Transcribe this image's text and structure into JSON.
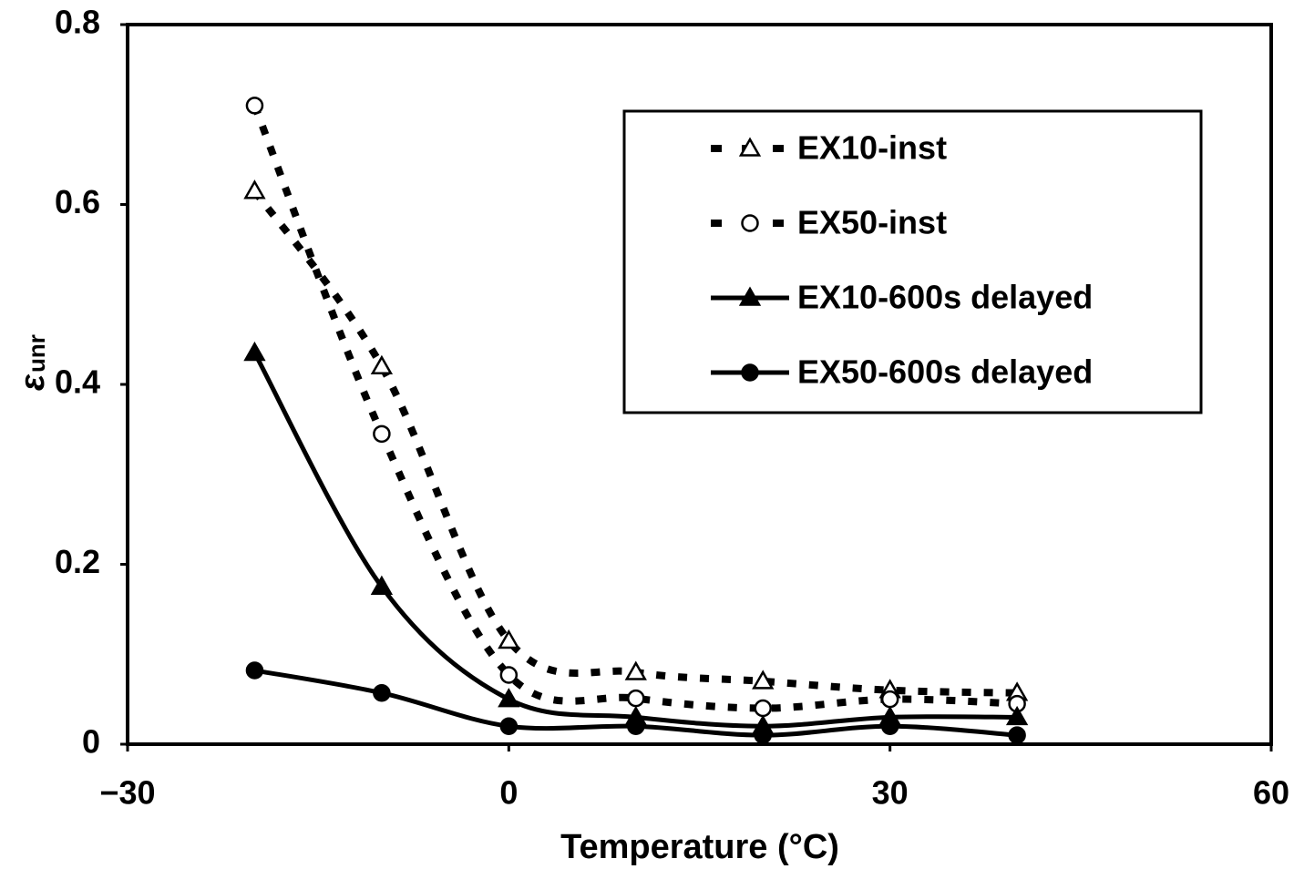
{
  "chart_data": {
    "type": "line",
    "xlabel": "Temperature (°C)",
    "ylabel": {
      "symbol": "ε",
      "subscript": "unr"
    },
    "x": [
      -20,
      -10,
      0,
      10,
      20,
      30,
      40
    ],
    "series": [
      {
        "name": "EX10-inst",
        "color": "#000000",
        "dash": true,
        "marker": "triangle",
        "filled": false,
        "values": [
          0.615,
          0.42,
          0.115,
          0.08,
          0.07,
          0.06,
          0.057
        ]
      },
      {
        "name": "EX50-inst",
        "color": "#000000",
        "dash": true,
        "marker": "circle",
        "filled": false,
        "values": [
          0.71,
          0.345,
          0.077,
          0.051,
          0.04,
          0.05,
          0.045
        ]
      },
      {
        "name": "EX10-600s delayed",
        "color": "#000000",
        "dash": false,
        "marker": "triangle",
        "filled": true,
        "values": [
          0.435,
          0.175,
          0.05,
          0.03,
          0.02,
          0.03,
          0.03
        ]
      },
      {
        "name": "EX50-600s delayed",
        "color": "#000000",
        "dash": false,
        "marker": "circle",
        "filled": true,
        "values": [
          0.082,
          0.057,
          0.02,
          0.02,
          0.01,
          0.02,
          0.01
        ]
      }
    ],
    "xlim": [
      -30,
      60
    ],
    "xticks": [
      {
        "value": -30,
        "label": "−30"
      },
      0,
      30,
      60
    ],
    "ylim": [
      0,
      0.8
    ],
    "yticks": [
      0,
      0.2,
      0.4,
      0.6,
      0.8
    ],
    "legend": "upper right"
  }
}
